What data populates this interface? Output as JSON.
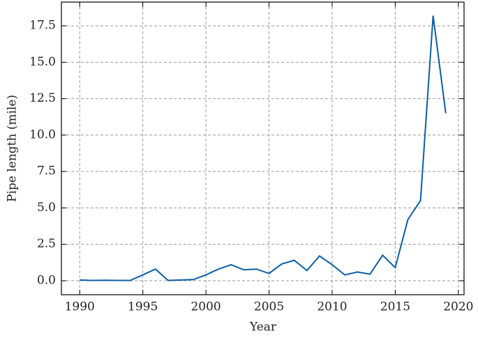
{
  "chart_data": {
    "type": "line",
    "xlabel": "Year",
    "ylabel": "Pipe length (mile)",
    "x": [
      1990,
      1991,
      1992,
      1993,
      1994,
      1995,
      1996,
      1997,
      1998,
      1999,
      2000,
      2001,
      2002,
      2003,
      2004,
      2005,
      2006,
      2007,
      2008,
      2009,
      2010,
      2011,
      2012,
      2013,
      2014,
      2015,
      2016,
      2017,
      2018,
      2019
    ],
    "values": [
      0.05,
      0.02,
      0.03,
      0.02,
      0.02,
      0.4,
      0.8,
      0.02,
      0.05,
      0.08,
      0.4,
      0.8,
      1.1,
      0.75,
      0.8,
      0.5,
      1.15,
      1.4,
      0.7,
      1.7,
      1.1,
      0.4,
      0.6,
      0.45,
      1.75,
      0.9,
      4.2,
      5.5,
      18.2,
      11.5
    ],
    "color": "#0c5da5",
    "xlim": [
      1988.55,
      2020.45
    ],
    "xticks": [
      1990,
      1995,
      2000,
      2005,
      2010,
      2015,
      2020
    ],
    "ylim": [
      -0.96,
      19.13
    ],
    "yticks": [
      {
        "value": 0,
        "label": "0.0"
      },
      2.5,
      {
        "value": 5,
        "label": "5.0"
      },
      7.5,
      {
        "value": 10,
        "label": "10.0"
      },
      12.5,
      {
        "value": 15,
        "label": "15.0"
      },
      17.5
    ],
    "grid": true
  }
}
